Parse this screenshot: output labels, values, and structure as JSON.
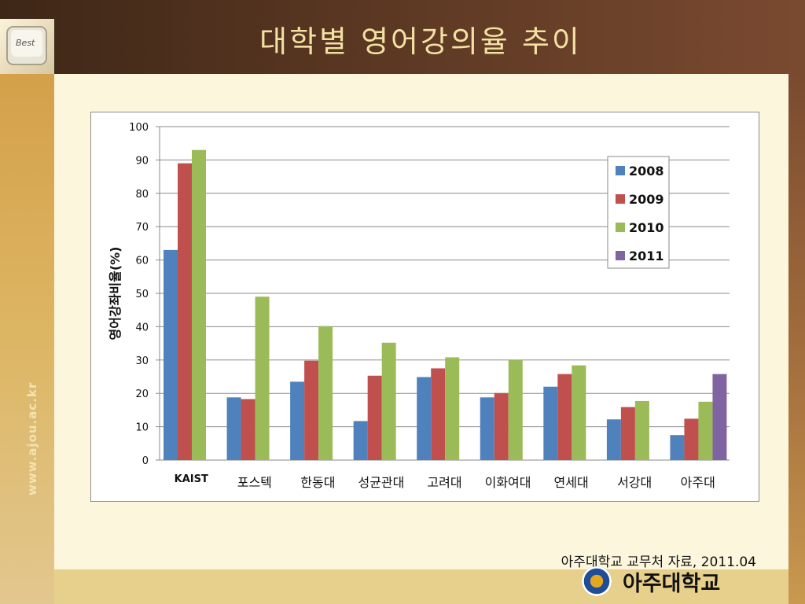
{
  "slide": {
    "title": "대학별 영어강의율 추이",
    "logo_key_label": "Best",
    "side_url": "www.ajou.ac.kr",
    "source": "아주대학교 교무처 자료, 2011.04",
    "university_name": "아주대학교"
  },
  "colors": {
    "2008": "#4f81bd",
    "2009": "#c0504d",
    "2010": "#9bbb59",
    "2011": "#8064a2"
  },
  "chart_data": {
    "type": "bar",
    "title": "",
    "xlabel": "",
    "ylabel": "영어강좌비율(%)",
    "ylim": [
      0,
      100
    ],
    "yticks": [
      0,
      10,
      20,
      30,
      40,
      50,
      60,
      70,
      80,
      90,
      100
    ],
    "grid": true,
    "legend_position": "top-right",
    "categories": [
      "KAIST",
      "포스텍",
      "한동대",
      "성균관대",
      "고려대",
      "이화여대",
      "연세대",
      "서강대",
      "아주대"
    ],
    "series": [
      {
        "name": "2008",
        "values": [
          63,
          18.8,
          23.5,
          11.7,
          24.9,
          18.8,
          22,
          12.2,
          7.5
        ]
      },
      {
        "name": "2009",
        "values": [
          89,
          18.3,
          29.8,
          25.3,
          27.5,
          20.1,
          25.8,
          15.9,
          12.4
        ]
      },
      {
        "name": "2010",
        "values": [
          93,
          49,
          40.2,
          35.2,
          30.8,
          30,
          28.4,
          17.7,
          17.5
        ]
      },
      {
        "name": "2011",
        "values": [
          null,
          null,
          null,
          null,
          null,
          null,
          null,
          null,
          25.8
        ]
      }
    ]
  }
}
